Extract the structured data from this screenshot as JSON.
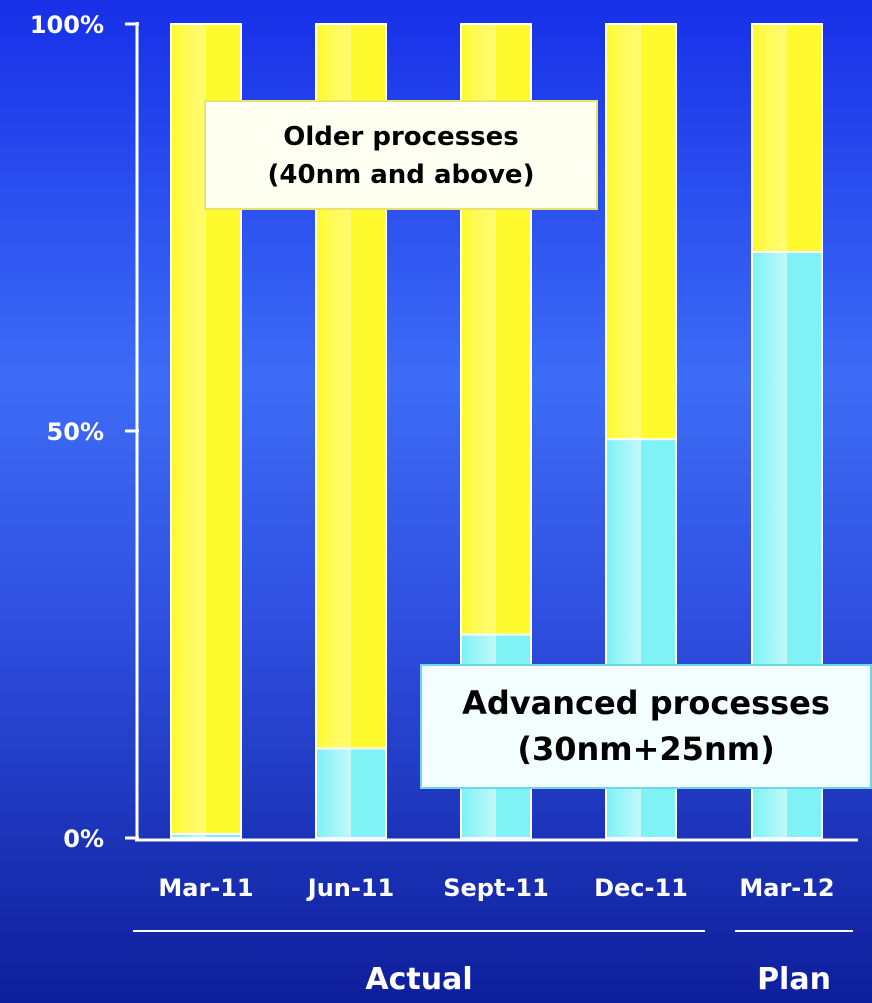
{
  "chart_data": {
    "type": "bar",
    "stacked": true,
    "categories": [
      "Mar-11",
      "Jun-11",
      "Sept-11",
      "Dec-11",
      "Mar-12"
    ],
    "series": [
      {
        "key": "advanced",
        "values": [
          0.5,
          11,
          25,
          49,
          72
        ],
        "color": "#7ff2f6"
      },
      {
        "key": "older",
        "values": [
          99.5,
          89,
          75,
          51,
          28
        ],
        "color": "#fffa2e"
      }
    ],
    "ylim": [
      0,
      100
    ],
    "y_ticks": [
      {
        "value": 0,
        "label": "0%"
      },
      {
        "value": 50,
        "label": "50%"
      },
      {
        "value": 100,
        "label": "100%"
      }
    ],
    "groups": [
      {
        "label": "Actual",
        "categories": [
          "Mar-11",
          "Jun-11",
          "Sept-11",
          "Dec-11"
        ]
      },
      {
        "label": "Plan",
        "categories": [
          "Mar-12"
        ]
      }
    ],
    "annotations": {
      "older": [
        "Older processes",
        "(40nm and above)"
      ],
      "advanced": [
        "Advanced processes",
        "(30nm+25nm)"
      ]
    }
  }
}
